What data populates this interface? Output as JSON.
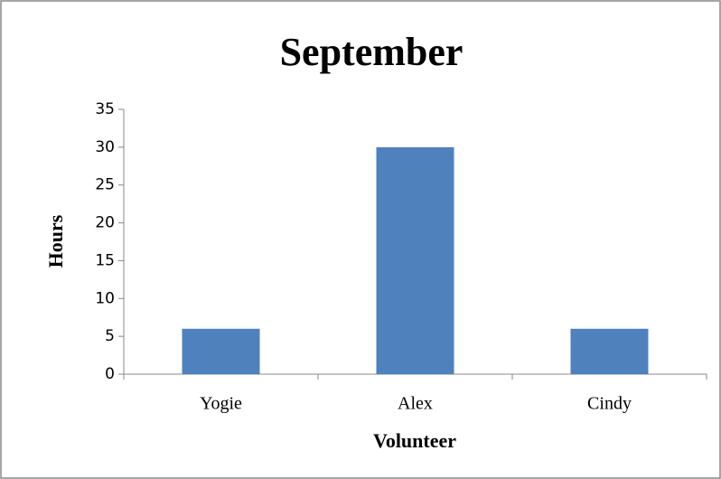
{
  "chart_data": {
    "type": "bar",
    "title": "September",
    "xlabel": "Volunteer",
    "ylabel": "Hours",
    "categories": [
      "Yogie",
      "Alex",
      "Cindy"
    ],
    "values": [
      6,
      30,
      6
    ],
    "color": "#4f81bd",
    "ylim": [
      0,
      35
    ],
    "yticks": [
      0,
      5,
      10,
      15,
      20,
      25,
      30,
      35
    ],
    "grid": false
  }
}
